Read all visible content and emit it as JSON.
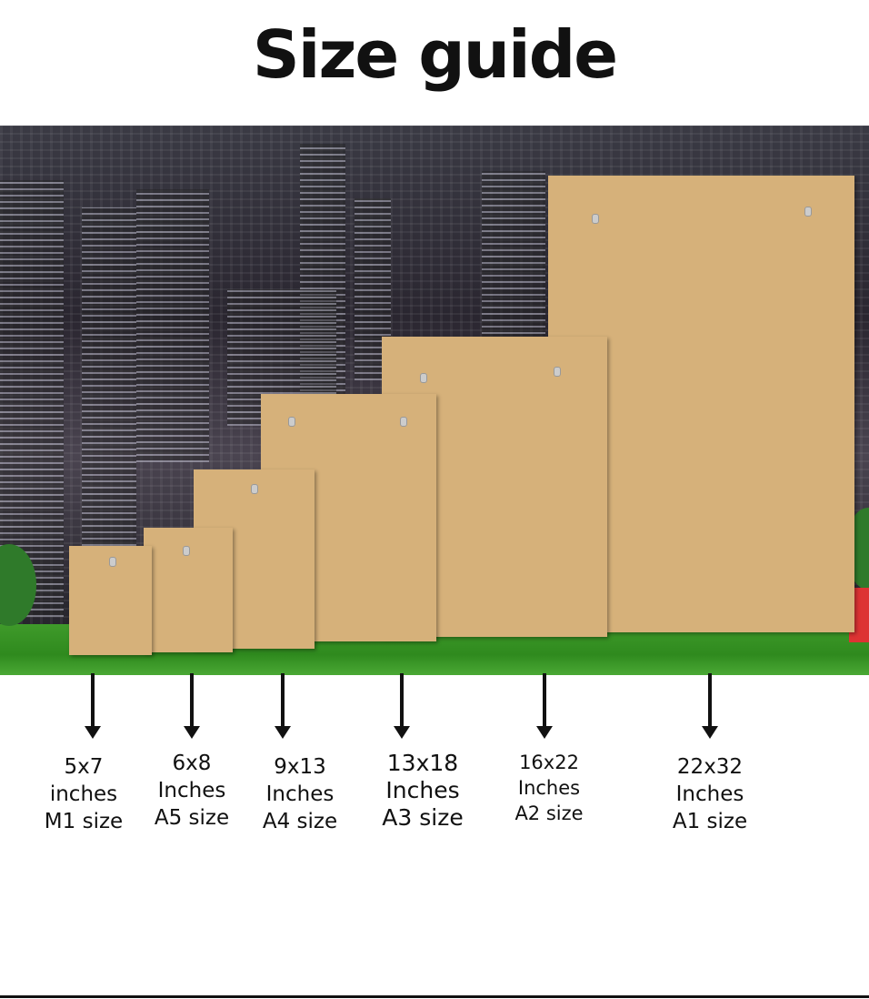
{
  "title": "Size guide",
  "colors": {
    "board": "#d6b17a",
    "grass": "#3f9a2a",
    "text": "#111111"
  },
  "sizes": [
    {
      "dimensions": "5x7",
      "unit": "inches",
      "size": "M1 size"
    },
    {
      "dimensions": "6x8",
      "unit": "Inches",
      "size": "A5 size"
    },
    {
      "dimensions": "9x13",
      "unit": "Inches",
      "size": "A4 size"
    },
    {
      "dimensions": "13x18",
      "unit": "Inches",
      "size": "A3 size"
    },
    {
      "dimensions": "16x22",
      "unit": "Inches",
      "size": "A2 size"
    },
    {
      "dimensions": "22x32",
      "unit": "Inches",
      "size": "A1 size"
    }
  ]
}
